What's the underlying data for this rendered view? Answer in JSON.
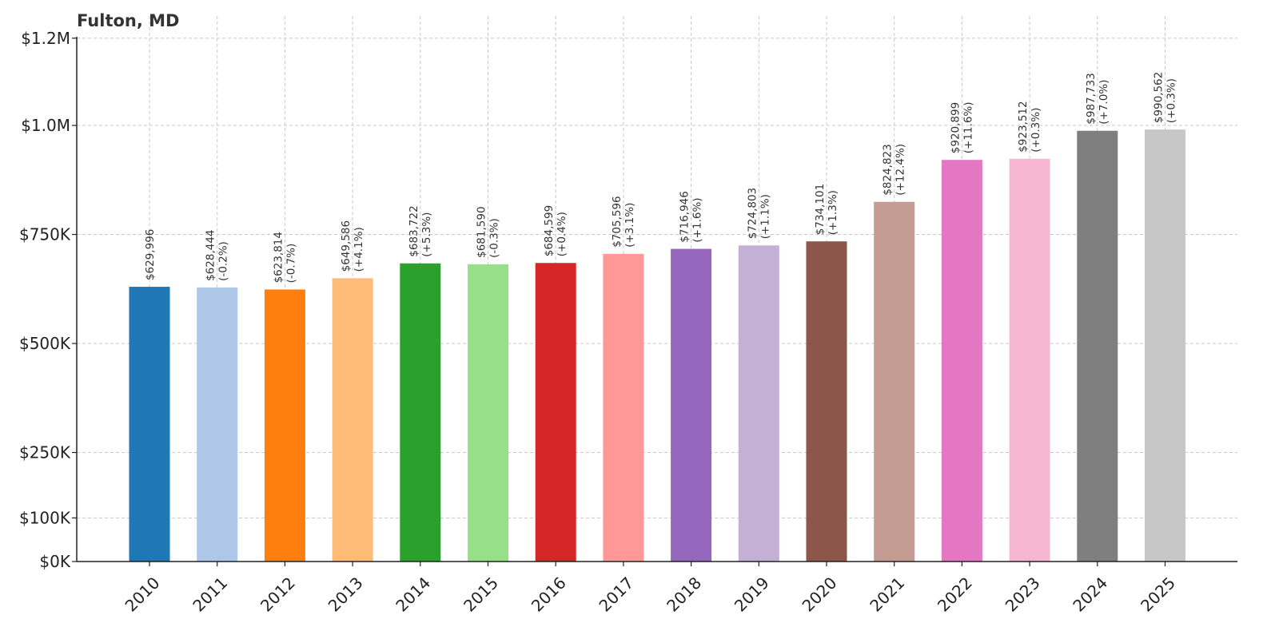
{
  "chart_data": {
    "type": "bar",
    "title": "Fulton, MD",
    "xlabel": "",
    "ylabel": "",
    "categories": [
      "2010",
      "2011",
      "2012",
      "2013",
      "2014",
      "2015",
      "2016",
      "2017",
      "2018",
      "2019",
      "2020",
      "2021",
      "2022",
      "2023",
      "2024",
      "2025"
    ],
    "values": [
      629996,
      628444,
      623814,
      649586,
      683722,
      681590,
      684599,
      705596,
      716946,
      724803,
      734101,
      824823,
      920899,
      923512,
      987733,
      990562
    ],
    "value_labels": [
      "$629,996",
      "$628,444",
      "$623,814",
      "$649,586",
      "$683,722",
      "$681,590",
      "$684,599",
      "$705,596",
      "$716,946",
      "$724,803",
      "$734,101",
      "$824,823",
      "$920,899",
      "$923,512",
      "$987,733",
      "$990,562"
    ],
    "change_labels": [
      "",
      "(-0.2%)",
      "(-0.7%)",
      "(+4.1%)",
      "(+5.3%)",
      "(-0.3%)",
      "(+0.4%)",
      "(+3.1%)",
      "(+1.6%)",
      "(+1.1%)",
      "(+1.3%)",
      "(+12.4%)",
      "(+11.6%)",
      "(+0.3%)",
      "(+7.0%)",
      "(+0.3%)"
    ],
    "colors": [
      "#1f77b4",
      "#aec7e8",
      "#ff7f0e",
      "#ffbb78",
      "#2ca02c",
      "#98df8a",
      "#d62728",
      "#ff9896",
      "#9467bd",
      "#c5b0d5",
      "#8c564b",
      "#c49c94",
      "#e377c2",
      "#f7b6d2",
      "#7f7f7f",
      "#c7c7c7"
    ],
    "yticks": [
      0,
      100000,
      250000,
      500000,
      750000,
      1000000,
      1200000
    ],
    "ytick_labels": [
      "$0K",
      "$100K",
      "$250K",
      "$500K",
      "$750K",
      "$1.0M",
      "$1.2M"
    ],
    "ylim": [
      0,
      1250000
    ],
    "grid": true,
    "legend": "none"
  }
}
